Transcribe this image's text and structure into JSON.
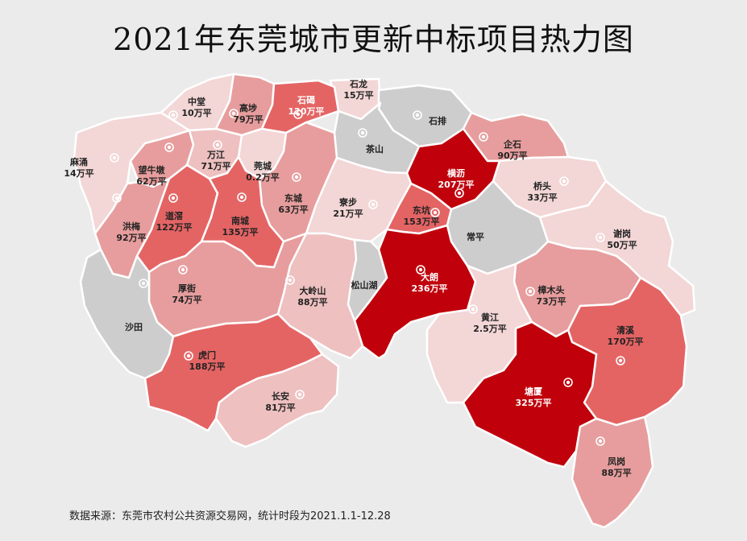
{
  "title": "2021年东莞城市更新中标项目热力图",
  "source": "数据来源：东莞市农村公共资源交易网，统计时段为2021.1.1-12.28",
  "colors": {
    "background": "#ebebeb",
    "none": "#cdcdcd",
    "very_low": "#f3d6d6",
    "low": "#eec0c0",
    "mid": "#e79d9d",
    "high": "#e46464",
    "very_high": "#c0000b"
  },
  "regions": [
    {
      "name": "石龙",
      "value": "15万平"
    },
    {
      "name": "中堂",
      "value": "10万平"
    },
    {
      "name": "高埗",
      "value": "79万平"
    },
    {
      "name": "石碣",
      "value": "120万平"
    },
    {
      "name": "石排",
      "value": ""
    },
    {
      "name": "茶山",
      "value": ""
    },
    {
      "name": "企石",
      "value": "90万平"
    },
    {
      "name": "麻涌",
      "value": "14万平"
    },
    {
      "name": "望牛墩",
      "value": "62万平"
    },
    {
      "name": "万江",
      "value": "71万平"
    },
    {
      "name": "莞城",
      "value": "0.2万平"
    },
    {
      "name": "横沥",
      "value": "207万平"
    },
    {
      "name": "桥头",
      "value": "33万平"
    },
    {
      "name": "东城",
      "value": "63万平"
    },
    {
      "name": "寮步",
      "value": "21万平"
    },
    {
      "name": "东坑",
      "value": "153万平"
    },
    {
      "name": "洪梅",
      "value": "92万平"
    },
    {
      "name": "道滘",
      "value": "122万平"
    },
    {
      "name": "南城",
      "value": "135万平"
    },
    {
      "name": "常平",
      "value": ""
    },
    {
      "name": "谢岗",
      "value": "50万平"
    },
    {
      "name": "大朗",
      "value": "236万平"
    },
    {
      "name": "厚街",
      "value": "74万平"
    },
    {
      "name": "大岭山",
      "value": "88万平"
    },
    {
      "name": "松山湖",
      "value": ""
    },
    {
      "name": "樟木头",
      "value": "73万平"
    },
    {
      "name": "黄江",
      "value": "2.5万平"
    },
    {
      "name": "清溪",
      "value": "170万平"
    },
    {
      "name": "沙田",
      "value": ""
    },
    {
      "name": "虎门",
      "value": "188万平"
    },
    {
      "name": "塘厦",
      "value": "325万平"
    },
    {
      "name": "长安",
      "value": "81万平"
    },
    {
      "name": "凤岗",
      "value": "88万平"
    }
  ]
}
